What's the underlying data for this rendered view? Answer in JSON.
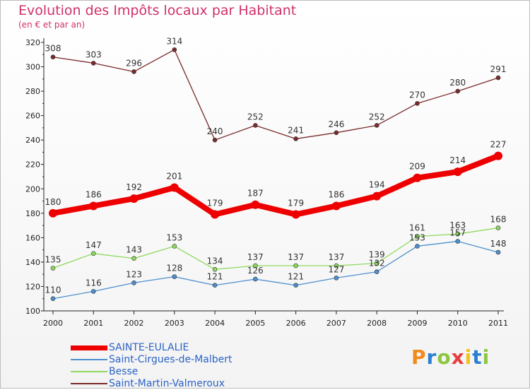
{
  "header": {
    "title": "Evolution des Impôts locaux par Habitant",
    "subtitle": "(en € et par an)"
  },
  "chart_data": {
    "type": "line",
    "title": "Evolution des Impôts locaux par Habitant",
    "subtitle": "(en € et par an)",
    "xlabel": "",
    "ylabel": "",
    "x": [
      "2000",
      "2001",
      "2002",
      "2003",
      "2004",
      "2005",
      "2006",
      "2007",
      "2008",
      "2009",
      "2010",
      "2011"
    ],
    "ylim": [
      100,
      320
    ],
    "yticks": [
      100,
      120,
      140,
      160,
      180,
      200,
      220,
      240,
      260,
      280,
      300,
      320
    ],
    "grid": false,
    "legend_position": "bottom-left",
    "series": [
      {
        "name": "SAINTE-EULALIE",
        "color": "#ee0000",
        "emphasis": true,
        "labels_above": true,
        "values": [
          180,
          186,
          192,
          201,
          179,
          187,
          179,
          186,
          194,
          209,
          214,
          227
        ]
      },
      {
        "name": "Saint-Cirgues-de-Malbert",
        "color": "#4d8fcd",
        "emphasis": false,
        "labels_above": true,
        "values": [
          110,
          116,
          123,
          128,
          121,
          126,
          121,
          127,
          132,
          153,
          157,
          148
        ]
      },
      {
        "name": "Besse",
        "color": "#8ed95e",
        "emphasis": false,
        "labels_above": true,
        "values": [
          135,
          147,
          143,
          153,
          134,
          137,
          137,
          137,
          139,
          161,
          163,
          168
        ]
      },
      {
        "name": "Saint-Martin-Valmeroux",
        "color": "#7a2a2a",
        "emphasis": false,
        "labels_above": true,
        "values": [
          308,
          303,
          296,
          314,
          240,
          252,
          241,
          246,
          252,
          270,
          280,
          291
        ]
      }
    ]
  },
  "legend": {
    "items": [
      {
        "label": "SAINTE-EULALIE",
        "color": "#ee0000",
        "thickness": 7
      },
      {
        "label": "Saint-Cirgues-de-Malbert",
        "color": "#4d8fcd",
        "thickness": 2
      },
      {
        "label": "Besse",
        "color": "#8ed95e",
        "thickness": 2
      },
      {
        "label": "Saint-Martin-Valmeroux",
        "color": "#7a2a2a",
        "thickness": 2
      }
    ]
  },
  "logo": {
    "text": "Proxiti",
    "colors": [
      "#f28a1c",
      "#2b7fd0",
      "#8cc63f",
      "#e93c3c",
      "#f2c21c",
      "#2b7fd0",
      "#8cc63f"
    ]
  },
  "colors": {
    "title": "#d0306a",
    "axis": "#222222",
    "value_label": "#333333",
    "legend_text": "#2b63c6"
  }
}
